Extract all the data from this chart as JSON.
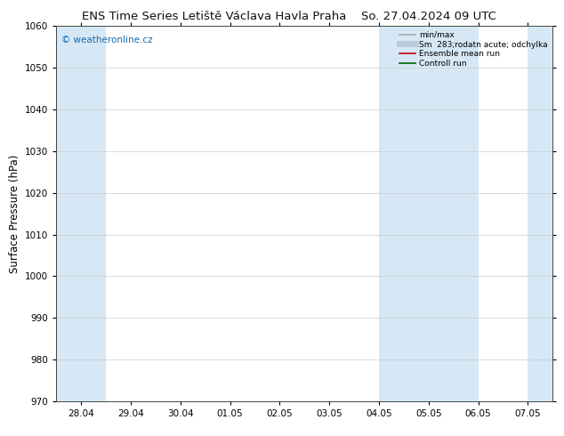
{
  "title_left": "ENS Time Series Letiště Václava Havla Praha",
  "title_right": "So. 27.04.2024 09 UTC",
  "ylabel": "Surface Pressure (hPa)",
  "ylim": [
    970,
    1060
  ],
  "yticks": [
    970,
    980,
    990,
    1000,
    1010,
    1020,
    1030,
    1040,
    1050,
    1060
  ],
  "x_tick_labels": [
    "28.04",
    "29.04",
    "30.04",
    "01.05",
    "02.05",
    "03.05",
    "04.05",
    "05.05",
    "06.05",
    "07.05"
  ],
  "x_tick_positions": [
    0,
    1,
    2,
    3,
    4,
    5,
    6,
    7,
    8,
    9
  ],
  "xlim": [
    -0.5,
    9.5
  ],
  "shaded_bands": [
    {
      "x_start": -0.5,
      "x_end": 0.5,
      "color": "#d6e8f5"
    },
    {
      "x_start": 6.0,
      "x_end": 8.0,
      "color": "#d6e8f5"
    },
    {
      "x_start": 9.0,
      "x_end": 9.5,
      "color": "#d6e8f5"
    }
  ],
  "watermark": "© weatheronline.cz",
  "watermark_color": "#1a6bad",
  "legend_entries": [
    {
      "label": "min/max",
      "color": "#aaaaaa",
      "lw": 1.2
    },
    {
      "label": "Sm  283;rodatn acute; odchylka",
      "color": "#bbccdd",
      "lw": 5
    },
    {
      "label": "Ensemble mean run",
      "color": "#cc0000",
      "lw": 1.2
    },
    {
      "label": "Controll run",
      "color": "#006600",
      "lw": 1.2
    }
  ],
  "background_color": "#ffffff",
  "plot_bg_color": "#ffffff",
  "grid_color": "#cccccc",
  "title_fontsize": 9.5,
  "tick_label_fontsize": 7.5,
  "ylabel_fontsize": 8.5
}
